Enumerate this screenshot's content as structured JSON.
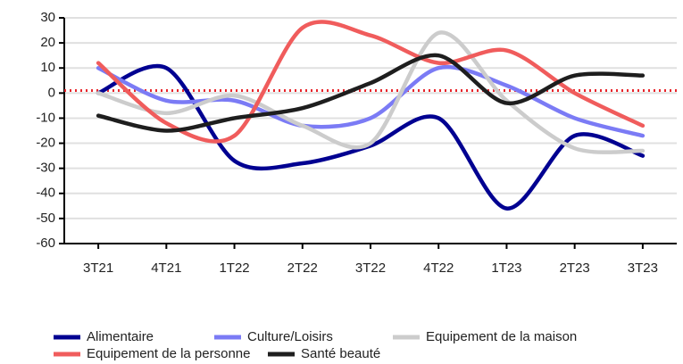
{
  "chart_data": {
    "type": "line",
    "categories": [
      "3T21",
      "4T21",
      "1T22",
      "2T22",
      "3T22",
      "4T22",
      "1T23",
      "2T23",
      "3T23"
    ],
    "series": [
      {
        "name": "Alimentaire",
        "color": "#000091",
        "values": [
          0,
          10,
          -27,
          -28,
          -21,
          -10,
          -46,
          -17,
          -25
        ]
      },
      {
        "name": "Culture/Loisirs",
        "color": "#7b7bf5",
        "values": [
          10,
          -3,
          -3,
          -13,
          -10,
          10,
          3,
          -10,
          -17
        ]
      },
      {
        "name": "Equipement de la maison",
        "color": "#cccccc",
        "values": [
          0,
          -8,
          -1,
          -13,
          -20,
          24,
          -3,
          -22,
          -23
        ]
      },
      {
        "name": "Equipement de la personne",
        "color": "#f05c5c",
        "values": [
          12,
          -12,
          -17,
          26,
          23,
          12,
          17,
          0,
          -13
        ]
      },
      {
        "name": "Santé beauté",
        "color": "#1e1e1e",
        "values": [
          -9,
          -15,
          -10,
          -6,
          4,
          15,
          -4,
          7,
          7
        ]
      }
    ],
    "reference_line": 1,
    "reference_color": "#e8262c",
    "ylim": [
      -60,
      30
    ],
    "yticks": [
      -60,
      -50,
      -40,
      -30,
      -20,
      -10,
      0,
      10,
      20,
      30
    ],
    "grid": true,
    "legend": "bottom"
  }
}
